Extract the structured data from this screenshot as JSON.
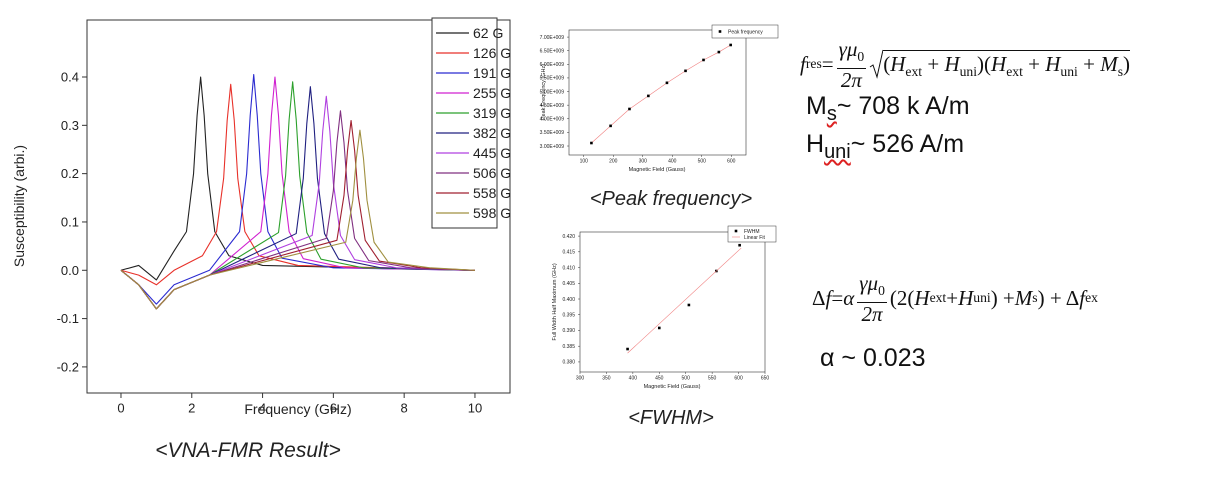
{
  "chart_data": [
    {
      "type": "line",
      "xlabel": "Frequency (GHz)",
      "ylabel": "Susceptibility (arbi.)",
      "caption": "<VNA-FMR Result>",
      "xlim": [
        -0.96,
        10.99
      ],
      "ylim": [
        -0.254,
        0.518
      ],
      "xticks": [
        0,
        2,
        4,
        6,
        8,
        10
      ],
      "yticks": [
        -0.2,
        -0.1,
        {
          "value": 0,
          "label": "0.0"
        },
        0.1,
        0.2,
        0.3,
        0.4
      ],
      "legend": "upper right",
      "series": [
        {
          "name": "62 G",
          "color": "#222222",
          "mode": "line",
          "x": [
            0,
            0.5,
            1,
            1.5,
            1.85,
            2.05,
            2.15,
            2.25,
            2.35,
            2.45,
            2.65,
            3.05,
            4,
            10
          ],
          "values": [
            0,
            0.01,
            -0.02,
            0.04,
            0.08,
            0.2,
            0.32,
            0.4,
            0.32,
            0.2,
            0.08,
            0.03,
            0.01,
            0
          ]
        },
        {
          "name": "126 G",
          "color": "#e8312a",
          "mode": "line",
          "x": [
            0,
            0.5,
            1,
            1.5,
            2.3,
            2.7,
            2.9,
            3.0,
            3.1,
            3.2,
            3.3,
            3.5,
            3.9,
            5,
            10
          ],
          "values": [
            0,
            -0.01,
            -0.03,
            0,
            0.03,
            0.08,
            0.19,
            0.31,
            0.385,
            0.31,
            0.19,
            0.08,
            0.03,
            0.01,
            0
          ]
        },
        {
          "name": "191 G",
          "color": "#2b2bd0",
          "mode": "line",
          "x": [
            0,
            0.5,
            1,
            1.5,
            2.5,
            3.35,
            3.55,
            3.65,
            3.75,
            3.85,
            3.95,
            4.15,
            4.55,
            6,
            10
          ],
          "values": [
            0,
            -0.03,
            -0.07,
            -0.03,
            0,
            0.08,
            0.2,
            0.32,
            0.405,
            0.32,
            0.2,
            0.08,
            0.025,
            0.005,
            0
          ]
        },
        {
          "name": "255 G",
          "color": "#d020d0",
          "mode": "line",
          "x": [
            0,
            0.5,
            1,
            1.5,
            2.5,
            3.95,
            4.15,
            4.25,
            4.35,
            4.45,
            4.55,
            4.75,
            5.15,
            6.35,
            10
          ],
          "values": [
            0,
            -0.03,
            -0.08,
            -0.04,
            -0.01,
            0.08,
            0.2,
            0.32,
            0.4,
            0.32,
            0.2,
            0.08,
            0.024,
            0.005,
            0
          ]
        },
        {
          "name": "319 G",
          "color": "#2ca02c",
          "mode": "line",
          "x": [
            0,
            0.5,
            1,
            1.5,
            2.5,
            4.45,
            4.65,
            4.75,
            4.85,
            4.95,
            5.05,
            5.25,
            5.65,
            6.85,
            10
          ],
          "values": [
            0,
            -0.03,
            -0.08,
            -0.04,
            -0.01,
            0.078,
            0.195,
            0.312,
            0.39,
            0.312,
            0.195,
            0.078,
            0.023,
            0.005,
            0
          ]
        },
        {
          "name": "382 G",
          "color": "#202080",
          "mode": "line",
          "x": [
            0,
            0.5,
            1,
            1.5,
            2.5,
            4.95,
            5.15,
            5.25,
            5.35,
            5.45,
            5.55,
            5.75,
            6.15,
            7.35,
            10
          ],
          "values": [
            0,
            -0.03,
            -0.08,
            -0.04,
            -0.01,
            0.076,
            0.19,
            0.304,
            0.38,
            0.304,
            0.19,
            0.076,
            0.023,
            0.005,
            0
          ]
        },
        {
          "name": "445 G",
          "color": "#b040e0",
          "mode": "line",
          "x": [
            0,
            0.5,
            1,
            1.5,
            2.5,
            5.4,
            5.6,
            5.7,
            5.8,
            5.9,
            6.0,
            6.2,
            6.6,
            7.8,
            10
          ],
          "values": [
            0,
            -0.03,
            -0.08,
            -0.04,
            -0.01,
            0.072,
            0.18,
            0.288,
            0.36,
            0.288,
            0.18,
            0.072,
            0.022,
            0.005,
            0
          ]
        },
        {
          "name": "506 G",
          "color": "#803080",
          "mode": "line",
          "x": [
            0,
            0.5,
            1,
            1.5,
            2.5,
            5.8,
            6.0,
            6.1,
            6.2,
            6.3,
            6.4,
            6.6,
            7.0,
            8.2,
            10
          ],
          "values": [
            0,
            -0.03,
            -0.08,
            -0.04,
            -0.01,
            0.066,
            0.165,
            0.264,
            0.33,
            0.264,
            0.165,
            0.066,
            0.02,
            0.005,
            0
          ]
        },
        {
          "name": "558 G",
          "color": "#a02030",
          "mode": "line",
          "x": [
            0,
            0.5,
            1,
            1.5,
            2.5,
            6.1,
            6.3,
            6.4,
            6.5,
            6.6,
            6.7,
            6.9,
            7.3,
            8.5,
            10
          ],
          "values": [
            0,
            -0.03,
            -0.08,
            -0.04,
            -0.01,
            0.062,
            0.155,
            0.248,
            0.31,
            0.248,
            0.155,
            0.062,
            0.019,
            0.005,
            0
          ]
        },
        {
          "name": "598 G",
          "color": "#a09040",
          "mode": "line",
          "x": [
            0,
            0.5,
            1,
            1.5,
            2.5,
            6.35,
            6.55,
            6.65,
            6.75,
            6.85,
            6.95,
            7.15,
            7.55,
            8.75,
            10
          ],
          "values": [
            0,
            -0.03,
            -0.08,
            -0.04,
            -0.01,
            0.058,
            0.145,
            0.232,
            0.29,
            0.232,
            0.145,
            0.058,
            0.017,
            0.005,
            0
          ]
        }
      ]
    },
    {
      "type": "scatter",
      "xlabel": "Magnetic Field (Gauss)",
      "ylabel": "Peak Frequency (GHz)",
      "caption": "<Peak frequency>",
      "xlim": [
        50,
        650
      ],
      "ylim": [
        2670000000,
        7260000000
      ],
      "xticks": [
        100,
        200,
        300,
        400,
        500,
        600
      ],
      "yticks": [
        {
          "value": 3000000000,
          "label": "3.00E+009"
        },
        {
          "value": 3500000000,
          "label": "3.50E+009"
        },
        {
          "value": 4000000000,
          "label": "4.00E+009"
        },
        {
          "value": 4500000000,
          "label": "4.50E+009"
        },
        {
          "value": 5000000000,
          "label": "5.00E+009"
        },
        {
          "value": 5500000000,
          "label": "5.50E+009"
        },
        {
          "value": 6000000000,
          "label": "6.00E+009"
        },
        {
          "value": 6500000000,
          "label": "6.50E+009"
        },
        {
          "value": 7000000000,
          "label": "7.00E+009"
        }
      ],
      "legend": "upper right",
      "connect_color": "#f08080",
      "series": [
        {
          "name": "Peak frequency",
          "color": "#000000",
          "mode": "markers",
          "x": [
            126,
            191,
            255,
            319,
            382,
            445,
            506,
            558,
            598
          ],
          "values": [
            3110000000,
            3740000000,
            4360000000,
            4840000000,
            5320000000,
            5760000000,
            6160000000,
            6450000000,
            6710000000
          ]
        }
      ]
    },
    {
      "type": "scatter",
      "xlabel": "Magnetic Field (Gauss)",
      "ylabel": "Full Width Half Maximum (GHz)",
      "caption": "<FWHM>",
      "xlim": [
        300,
        650
      ],
      "ylim": [
        0.3768,
        0.4213
      ],
      "xticks": [
        300,
        350,
        400,
        450,
        500,
        550,
        600,
        650
      ],
      "yticks": [
        {
          "value": 0.38,
          "label": "0.380"
        },
        {
          "value": 0.385,
          "label": "0.385"
        },
        {
          "value": 0.39,
          "label": "0.390"
        },
        {
          "value": 0.395,
          "label": "0.395"
        },
        {
          "value": 0.4,
          "label": "0.400"
        },
        {
          "value": 0.405,
          "label": "0.405"
        },
        {
          "value": 0.41,
          "label": "0.410"
        },
        {
          "value": 0.415,
          "label": "0.415"
        },
        {
          "value": 0.42,
          "label": "0.420"
        }
      ],
      "legend": "upper right",
      "series": [
        {
          "name": "FWHM",
          "color": "#000000",
          "mode": "markers",
          "x": [
            390,
            450,
            506,
            558,
            602
          ],
          "values": [
            0.3841,
            0.3908,
            0.3981,
            0.4089,
            0.4171
          ]
        },
        {
          "name": "Linear Fit",
          "color": "#f08080",
          "mode": "line",
          "x": [
            390,
            605
          ],
          "values": [
            0.3828,
            0.4162
          ]
        }
      ]
    }
  ],
  "equations": [
    {
      "lhs": [
        {
          "text": "f",
          "sub": "res"
        },
        " ="
      ],
      "numerator": [
        {
          "text": "γμ",
          "sub": "0"
        }
      ],
      "denominator": "2π",
      "radicand": [
        "(",
        {
          "text": "H",
          "sub": "ext"
        },
        " + ",
        {
          "text": "H",
          "sub": "uni"
        },
        ")(",
        {
          "text": "H",
          "sub": "ext"
        },
        " + ",
        {
          "text": "H",
          "sub": "uni"
        },
        " + ",
        {
          "text": "M",
          "sub": "s"
        },
        ")"
      ]
    },
    {
      "lhs": [
        "Δ",
        {
          "text": "f"
        },
        " = ",
        {
          "text": "α"
        }
      ],
      "numerator": [
        {
          "text": "γμ",
          "sub": "0"
        }
      ],
      "denominator": "2π",
      "tail": [
        "(2(",
        {
          "text": "H",
          "sub": "ext"
        },
        " + ",
        {
          "text": "H",
          "sub": "uni"
        },
        ") + ",
        {
          "text": "M",
          "sub": "s"
        },
        ") + Δ",
        {
          "text": "f",
          "sub": "ex"
        }
      ]
    }
  ],
  "parameters": [
    {
      "symbol": "M",
      "sub": "s",
      "text": "~ 708 k A/m"
    },
    {
      "symbol": "H",
      "sub": "uni",
      "text": "~ 526 A/m"
    },
    {
      "symbol": "α",
      "text": " ~ 0.023"
    }
  ]
}
